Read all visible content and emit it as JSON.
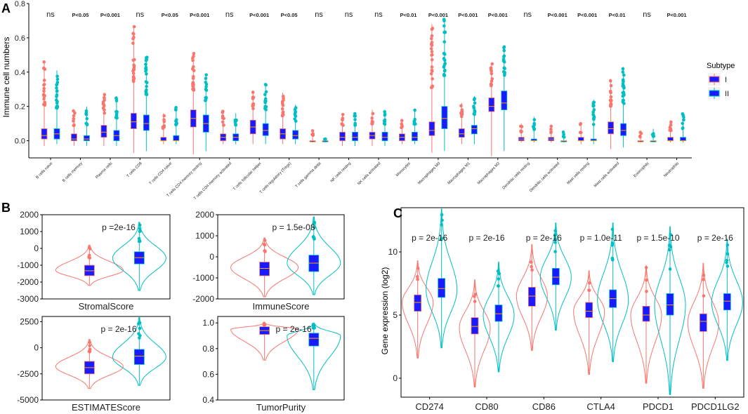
{
  "colors": {
    "group_I": "#F8766D",
    "group_II": "#00BFC4",
    "box_fill": "#1a1aff",
    "median": "#ffa500",
    "axis": "#000000",
    "text": "#222222"
  },
  "chart_data": [
    {
      "panel": "A",
      "type": "box",
      "ylabel": "Immune cell numbers",
      "ylim": [
        -0.1,
        0.8
      ],
      "yticks": [
        0.0,
        0.2,
        0.4,
        0.6,
        0.8
      ],
      "ytick_labels": [
        "0.0",
        "0.2",
        "0.4",
        "0.6",
        "0.8"
      ],
      "legend": {
        "title": "Subtype",
        "entries": [
          "I",
          "II"
        ],
        "position": "right"
      },
      "categories": [
        {
          "name": "B cells naive",
          "sig": "ns",
          "I": {
            "min": -0.03,
            "q1": 0.01,
            "med": 0.03,
            "q3": 0.07,
            "max": 0.46
          },
          "II": {
            "min": -0.02,
            "q1": 0.01,
            "med": 0.04,
            "q3": 0.07,
            "max": 0.41
          }
        },
        {
          "name": "B cells memory",
          "sig": "P<0.05",
          "I": {
            "min": -0.03,
            "q1": 0.0,
            "med": 0.01,
            "q3": 0.04,
            "max": 0.18
          },
          "II": {
            "min": -0.03,
            "q1": 0.0,
            "med": 0.01,
            "q3": 0.03,
            "max": 0.2
          }
        },
        {
          "name": "Plasma cells",
          "sig": "P<0.001",
          "I": {
            "min": -0.03,
            "q1": 0.02,
            "med": 0.05,
            "q3": 0.09,
            "max": 0.28
          },
          "II": {
            "min": -0.03,
            "q1": 0.0,
            "med": 0.03,
            "q3": 0.06,
            "max": 0.26
          }
        },
        {
          "name": "T cells CD8",
          "sig": "ns",
          "I": {
            "min": -0.07,
            "q1": 0.07,
            "med": 0.11,
            "q3": 0.16,
            "max": 0.67
          },
          "II": {
            "min": -0.06,
            "q1": 0.06,
            "med": 0.1,
            "q3": 0.15,
            "max": 0.49
          }
        },
        {
          "name": "T cells CD4 naive",
          "sig": "P<0.05",
          "I": {
            "min": -0.02,
            "q1": 0.0,
            "med": 0.0,
            "q3": 0.02,
            "max": 0.16
          },
          "II": {
            "min": -0.02,
            "q1": 0.0,
            "med": 0.0,
            "q3": 0.03,
            "max": 0.2
          }
        },
        {
          "name": "T cells CD4 memory resting",
          "sig": "P<0.001",
          "I": {
            "min": -0.08,
            "q1": 0.08,
            "med": 0.13,
            "q3": 0.18,
            "max": 0.51
          },
          "II": {
            "min": -0.06,
            "q1": 0.05,
            "med": 0.1,
            "q3": 0.15,
            "max": 0.39
          }
        },
        {
          "name": "T cells CD4 memory activated",
          "sig": "ns",
          "I": {
            "min": -0.02,
            "q1": 0.0,
            "med": 0.02,
            "q3": 0.04,
            "max": 0.18
          },
          "II": {
            "min": -0.02,
            "q1": 0.0,
            "med": 0.02,
            "q3": 0.04,
            "max": 0.16
          }
        },
        {
          "name": "T cells follicular helper",
          "sig": "P<0.001",
          "I": {
            "min": -0.02,
            "q1": 0.04,
            "med": 0.08,
            "q3": 0.12,
            "max": 0.29
          },
          "II": {
            "min": -0.02,
            "q1": 0.03,
            "med": 0.06,
            "q3": 0.1,
            "max": 0.33
          }
        },
        {
          "name": "T cells regulatory (Tregs)",
          "sig": "P<0.05",
          "I": {
            "min": -0.02,
            "q1": 0.01,
            "med": 0.04,
            "q3": 0.07,
            "max": 0.28
          },
          "II": {
            "min": -0.02,
            "q1": 0.01,
            "med": 0.03,
            "q3": 0.06,
            "max": 0.21
          }
        },
        {
          "name": "T cells gamma delta",
          "sig": "ns",
          "I": {
            "min": -0.01,
            "q1": 0.0,
            "med": 0.0,
            "q3": 0.0,
            "max": 0.06
          },
          "II": {
            "min": -0.01,
            "q1": 0.0,
            "med": 0.0,
            "q3": 0.0,
            "max": 0.02
          }
        },
        {
          "name": "NK cells resting",
          "sig": "ns",
          "I": {
            "min": -0.03,
            "q1": 0.0,
            "med": 0.02,
            "q3": 0.05,
            "max": 0.16
          },
          "II": {
            "min": -0.03,
            "q1": 0.0,
            "med": 0.02,
            "q3": 0.05,
            "max": 0.16
          }
        },
        {
          "name": "NK cells activated",
          "sig": "ns",
          "I": {
            "min": -0.03,
            "q1": 0.01,
            "med": 0.03,
            "q3": 0.05,
            "max": 0.18
          },
          "II": {
            "min": -0.03,
            "q1": 0.0,
            "med": 0.02,
            "q3": 0.05,
            "max": 0.18
          }
        },
        {
          "name": "Monocytes",
          "sig": "P<0.01",
          "I": {
            "min": -0.02,
            "q1": 0.0,
            "med": 0.02,
            "q3": 0.04,
            "max": 0.12
          },
          "II": {
            "min": -0.02,
            "q1": 0.0,
            "med": 0.02,
            "q3": 0.05,
            "max": 0.18
          }
        },
        {
          "name": "Macrophages M0",
          "sig": "P<0.001",
          "I": {
            "min": -0.07,
            "q1": 0.03,
            "med": 0.06,
            "q3": 0.11,
            "max": 0.68
          },
          "II": {
            "min": -0.06,
            "q1": 0.07,
            "med": 0.13,
            "q3": 0.2,
            "max": 0.71
          }
        },
        {
          "name": "Macrophages M1",
          "sig": "P<0.001",
          "I": {
            "min": -0.02,
            "q1": 0.02,
            "med": 0.04,
            "q3": 0.07,
            "max": 0.22
          },
          "II": {
            "min": -0.02,
            "q1": 0.04,
            "med": 0.07,
            "q3": 0.09,
            "max": 0.26
          }
        },
        {
          "name": "Macrophages M2",
          "sig": "P<0.001",
          "I": {
            "min": -0.09,
            "q1": 0.17,
            "med": 0.2,
            "q3": 0.25,
            "max": 0.45
          },
          "II": {
            "min": -0.06,
            "q1": 0.18,
            "med": 0.22,
            "q3": 0.29,
            "max": 0.55
          }
        },
        {
          "name": "Dendritic cells resting",
          "sig": "ns",
          "I": {
            "min": -0.01,
            "q1": 0.0,
            "med": 0.01,
            "q3": 0.02,
            "max": 0.1
          },
          "II": {
            "min": -0.01,
            "q1": 0.0,
            "med": 0.0,
            "q3": 0.01,
            "max": 0.14
          }
        },
        {
          "name": "Dendritic cells activated",
          "sig": "P<0.001",
          "I": {
            "min": -0.01,
            "q1": 0.0,
            "med": 0.01,
            "q3": 0.02,
            "max": 0.09
          },
          "II": {
            "min": -0.01,
            "q1": 0.0,
            "med": 0.0,
            "q3": 0.0,
            "max": 0.06
          }
        },
        {
          "name": "Mast cells resting",
          "sig": "P<0.001",
          "I": {
            "min": -0.02,
            "q1": 0.0,
            "med": 0.0,
            "q3": 0.02,
            "max": 0.1
          },
          "II": {
            "min": -0.02,
            "q1": 0.0,
            "med": 0.0,
            "q3": 0.01,
            "max": 0.24
          }
        },
        {
          "name": "Mast cells activated",
          "sig": "P<0.01",
          "I": {
            "min": -0.05,
            "q1": 0.04,
            "med": 0.07,
            "q3": 0.11,
            "max": 0.36
          },
          "II": {
            "min": -0.04,
            "q1": 0.03,
            "med": 0.06,
            "q3": 0.1,
            "max": 0.43
          }
        },
        {
          "name": "Eosinophils",
          "sig": "ns",
          "I": {
            "min": -0.01,
            "q1": 0.0,
            "med": 0.0,
            "q3": 0.0,
            "max": 0.06
          },
          "II": {
            "min": -0.01,
            "q1": 0.0,
            "med": 0.0,
            "q3": 0.0,
            "max": 0.07
          }
        },
        {
          "name": "Neutrophils",
          "sig": "P<0.001",
          "I": {
            "min": -0.01,
            "q1": 0.0,
            "med": 0.0,
            "q3": 0.02,
            "max": 0.12
          },
          "II": {
            "min": -0.01,
            "q1": 0.0,
            "med": 0.0,
            "q3": 0.02,
            "max": 0.16
          }
        }
      ]
    },
    {
      "panel": "B",
      "type": "violin",
      "subplots": [
        {
          "xlabel": "StromalScore",
          "pvalue": "p =2e-16",
          "ylim": [
            -3000,
            2000
          ],
          "yticks": [
            2000,
            1000,
            0,
            -1000,
            -2000,
            -3000
          ],
          "ytick_labels": [
            "2000",
            "1000",
            "0",
            "-1000",
            "-2000",
            "-3000"
          ],
          "I": {
            "min": -2200,
            "q1": -1620,
            "med": -1330,
            "q3": -1000,
            "max": 200,
            "center": -1300
          },
          "II": {
            "min": -2500,
            "q1": -920,
            "med": -550,
            "q3": -200,
            "max": 1550,
            "center": -580
          }
        },
        {
          "xlabel": "ImmuneScore",
          "pvalue": "p = 1.5e-08",
          "ylim": [
            -2000,
            2000
          ],
          "yticks": [
            2000,
            1000,
            0,
            -1000,
            -2000
          ],
          "ytick_labels": [
            "2000",
            "1000",
            "0",
            "-1000",
            "-2000"
          ],
          "I": {
            "min": -1900,
            "q1": -900,
            "med": -550,
            "q3": -250,
            "max": 900,
            "center": -500
          },
          "II": {
            "min": -1800,
            "q1": -700,
            "med": -300,
            "q3": 80,
            "max": 1900,
            "center": -300
          }
        },
        {
          "xlabel": "ESTIMATEScore",
          "pvalue": "p = 2e-16",
          "ylim": [
            -5000,
            3000
          ],
          "yticks": [
            2500,
            0,
            -2500,
            -5000
          ],
          "ytick_labels": [
            "2500",
            "0",
            "-2500",
            "-5000"
          ],
          "I": {
            "min": -3900,
            "q1": -2500,
            "med": -1900,
            "q3": -1300,
            "max": 800,
            "center": -1800
          },
          "II": {
            "min": -3600,
            "q1": -1600,
            "med": -800,
            "q3": -150,
            "max": 2900,
            "center": -900
          }
        },
        {
          "xlabel": "TumorPurity",
          "pvalue": "p = 2e-16",
          "ylim": [
            0.4,
            1.05
          ],
          "yticks": [
            1.0,
            0.8,
            0.6,
            0.4
          ],
          "ytick_labels": [
            "1.0",
            "0.8",
            "0.6",
            "0.4"
          ],
          "I": {
            "min": 0.71,
            "q1": 0.91,
            "med": 0.94,
            "q3": 0.97,
            "max": 1.0,
            "center": 0.95
          },
          "II": {
            "min": 0.48,
            "q1": 0.82,
            "med": 0.88,
            "q3": 0.92,
            "max": 1.0,
            "center": 0.9
          }
        }
      ]
    },
    {
      "panel": "C",
      "type": "violin",
      "ylabel": "Gene expression (log2)",
      "ylim": [
        -1.5,
        13.5
      ],
      "yticks": [
        0,
        5,
        10
      ],
      "ytick_labels": [
        "0",
        "5",
        "10"
      ],
      "categories": [
        {
          "name": "CD274",
          "pvalue": "p = 2e-16",
          "I": {
            "min": 1.6,
            "q1": 5.3,
            "med": 6.0,
            "q3": 6.6,
            "max": 9.3,
            "center": 6.0
          },
          "II": {
            "min": 2.4,
            "q1": 6.4,
            "med": 7.1,
            "q3": 7.9,
            "max": 13.4,
            "center": 7.0
          }
        },
        {
          "name": "CD80",
          "pvalue": "p = 2e-16",
          "I": {
            "min": -0.7,
            "q1": 3.5,
            "med": 4.1,
            "q3": 4.8,
            "max": 7.8,
            "center": 4.0
          },
          "II": {
            "min": 0.5,
            "q1": 4.5,
            "med": 5.1,
            "q3": 5.8,
            "max": 9.2,
            "center": 5.0
          }
        },
        {
          "name": "CD86",
          "pvalue": "p = 2e-16",
          "I": {
            "min": 2.2,
            "q1": 5.7,
            "med": 6.5,
            "q3": 7.2,
            "max": 10.6,
            "center": 6.5
          },
          "II": {
            "min": 3.8,
            "q1": 7.4,
            "med": 8.0,
            "q3": 8.7,
            "max": 12.3,
            "center": 8.0
          }
        },
        {
          "name": "CTLA4",
          "pvalue": "p = 1.0e-11",
          "I": {
            "min": 0.3,
            "q1": 4.8,
            "med": 5.3,
            "q3": 6.0,
            "max": 8.5,
            "center": 5.3
          },
          "II": {
            "min": 1.3,
            "q1": 5.6,
            "med": 6.3,
            "q3": 7.0,
            "max": 12.3,
            "center": 6.2
          }
        },
        {
          "name": "PDCD1",
          "pvalue": "p = 1.5e-10",
          "I": {
            "min": -0.4,
            "q1": 4.5,
            "med": 5.0,
            "q3": 5.7,
            "max": 8.9,
            "center": 5.0
          },
          "II": {
            "min": -1.3,
            "q1": 5.0,
            "med": 5.8,
            "q3": 6.7,
            "max": 12.0,
            "center": 5.8
          }
        },
        {
          "name": "PDCD1LG2",
          "pvalue": "p = 2e-16",
          "I": {
            "min": -0.8,
            "q1": 3.7,
            "med": 4.5,
            "q3": 5.1,
            "max": 9.1,
            "center": 4.4
          },
          "II": {
            "min": 1.4,
            "q1": 5.4,
            "med": 6.1,
            "q3": 6.7,
            "max": 11.0,
            "center": 6.0
          }
        }
      ]
    }
  ],
  "panel_labels": {
    "A": "A",
    "B": "B",
    "C": "C"
  }
}
